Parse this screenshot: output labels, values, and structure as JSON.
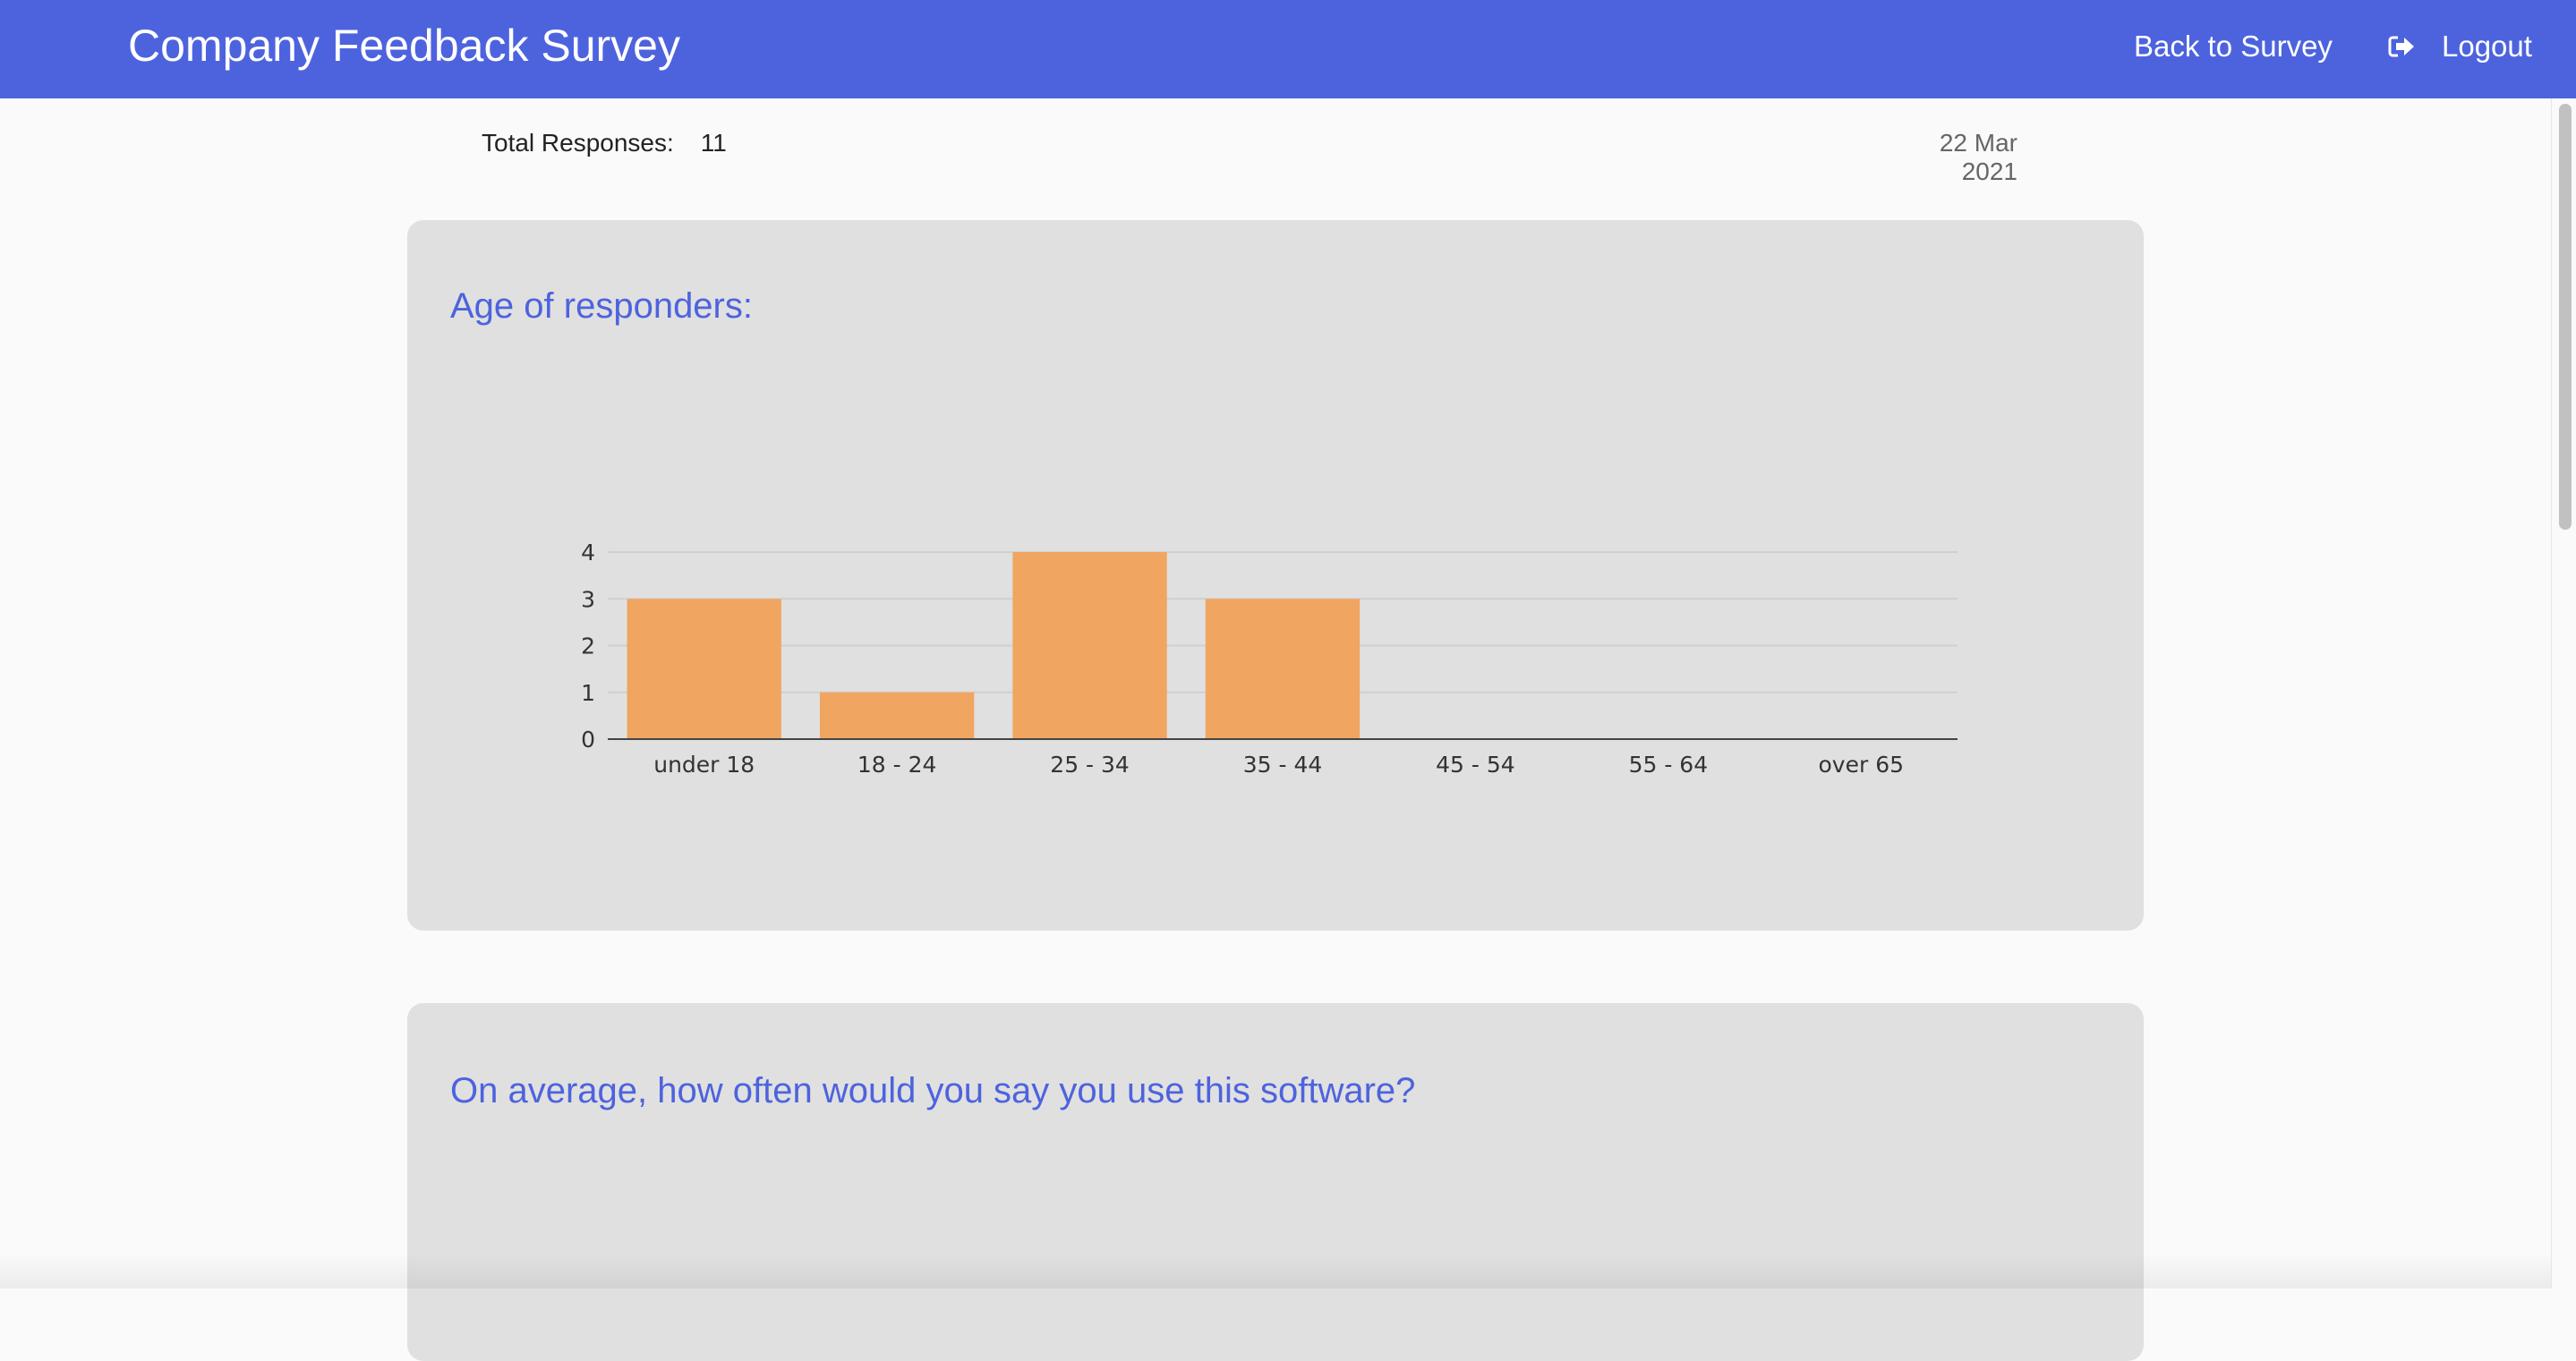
{
  "header": {
    "title": "Company Feedback Survey",
    "back_label": "Back to Survey",
    "logout_label": "Logout",
    "logout_icon": "logout-icon",
    "color": "#4d63de"
  },
  "summary": {
    "total_label": "Total Responses:",
    "total_value": "11",
    "date": "22 Mar 2021"
  },
  "cards": [
    {
      "title": "Age of responders:"
    },
    {
      "title": "On average, how often would you say you use this software?"
    }
  ],
  "chart_data": {
    "type": "bar",
    "categories": [
      "under 18",
      "18 - 24",
      "25 - 34",
      "35 - 44",
      "45 - 54",
      "55 - 64",
      "over 65"
    ],
    "values": [
      3,
      1,
      4,
      3,
      0,
      0,
      0
    ],
    "yticks": [
      0,
      1,
      2,
      3,
      4
    ],
    "ylim": [
      0,
      4
    ],
    "grid": true,
    "bar_color": "#f0a561"
  }
}
